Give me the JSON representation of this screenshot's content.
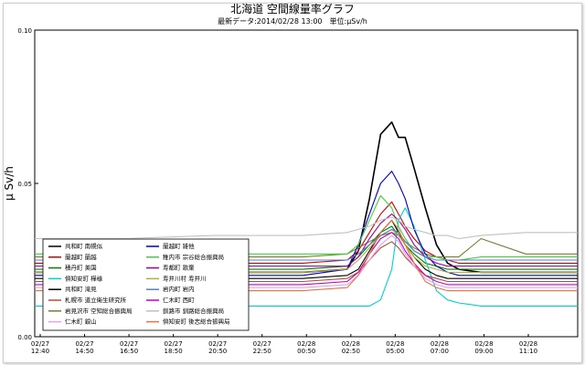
{
  "chart_data": {
    "type": "line",
    "title": "北海道 空間線量率グラフ",
    "subtitle": "最新データ:2014/02/28 13:00　単位:μSv/h",
    "ylabel": "μ Sv/h",
    "xlabel": "",
    "ylim": [
      0.0,
      0.1
    ],
    "y_ticks": [
      "0.00",
      "0.05",
      "0.10"
    ],
    "x_ticks": [
      {
        "date": "02/27",
        "time": "12:40"
      },
      {
        "date": "02/27",
        "time": "14:50"
      },
      {
        "date": "02/27",
        "time": "16:50"
      },
      {
        "date": "02/27",
        "time": "18:50"
      },
      {
        "date": "02/27",
        "time": "20:50"
      },
      {
        "date": "02/27",
        "time": "22:50"
      },
      {
        "date": "02/28",
        "time": "00:50"
      },
      {
        "date": "02/28",
        "time": "02:50"
      },
      {
        "date": "02/28",
        "time": "05:00"
      },
      {
        "date": "02/28",
        "time": "07:00"
      },
      {
        "date": "02/28",
        "time": "09:00"
      },
      {
        "date": "02/28",
        "time": "11:10"
      }
    ],
    "grid": false,
    "legend_position": "bottom-left",
    "x_hours": [
      0,
      4,
      8,
      12,
      14,
      14.5,
      15,
      15.5,
      16,
      16.3,
      16.6,
      17,
      17.5,
      18,
      18.5,
      19,
      20,
      22,
      24.33
    ],
    "series": [
      {
        "name": "共和町 南幌似",
        "color": "#000000",
        "values": [
          0.021,
          0.021,
          0.021,
          0.021,
          0.022,
          0.028,
          0.045,
          0.066,
          0.07,
          0.065,
          0.065,
          0.055,
          0.042,
          0.03,
          0.024,
          0.022,
          0.021,
          0.021,
          0.021
        ]
      },
      {
        "name": "蘭越町 蘭越",
        "color": "#d00000",
        "values": [
          0.024,
          0.024,
          0.024,
          0.024,
          0.025,
          0.028,
          0.034,
          0.04,
          0.044,
          0.04,
          0.036,
          0.032,
          0.028,
          0.026,
          0.025,
          0.024,
          0.024,
          0.024,
          0.024
        ]
      },
      {
        "name": "積丹町 美国",
        "color": "#008000",
        "values": [
          0.022,
          0.022,
          0.022,
          0.022,
          0.023,
          0.026,
          0.03,
          0.034,
          0.036,
          0.033,
          0.03,
          0.027,
          0.024,
          0.023,
          0.022,
          0.022,
          0.022,
          0.022,
          0.022
        ]
      },
      {
        "name": "倶知安町 樺様",
        "color": "#00d0d0",
        "values": [
          0.01,
          0.01,
          0.01,
          0.01,
          0.01,
          0.01,
          0.01,
          0.012,
          0.022,
          0.038,
          0.042,
          0.036,
          0.025,
          0.015,
          0.012,
          0.011,
          0.01,
          0.01,
          0.01
        ]
      },
      {
        "name": "共和町 滝見",
        "color": "#000000",
        "values": [
          0.019,
          0.019,
          0.019,
          0.019,
          0.02,
          0.022,
          0.028,
          0.034,
          0.038,
          0.034,
          0.03,
          0.026,
          0.022,
          0.02,
          0.019,
          0.019,
          0.019,
          0.019,
          0.019
        ]
      },
      {
        "name": "札幌市 道立衛生研究所",
        "color": "#b05030",
        "values": [
          0.018,
          0.018,
          0.018,
          0.018,
          0.019,
          0.021,
          0.025,
          0.029,
          0.031,
          0.029,
          0.026,
          0.023,
          0.02,
          0.019,
          0.018,
          0.018,
          0.018,
          0.018,
          0.018
        ]
      },
      {
        "name": "岩見沢市 空知総合振興局",
        "color": "#708030",
        "values": [
          0.026,
          0.026,
          0.026,
          0.026,
          0.027,
          0.029,
          0.031,
          0.033,
          0.034,
          0.033,
          0.031,
          0.029,
          0.027,
          0.026,
          0.026,
          0.026,
          0.032,
          0.027,
          0.027
        ]
      },
      {
        "name": "仁木町 銀山",
        "color": "#e8a0e8",
        "values": [
          0.016,
          0.016,
          0.016,
          0.016,
          0.017,
          0.02,
          0.025,
          0.03,
          0.033,
          0.031,
          0.027,
          0.023,
          0.019,
          0.017,
          0.016,
          0.016,
          0.016,
          0.016,
          0.016
        ]
      },
      {
        "name": "蘭越町 雑他",
        "color": "#0000c0",
        "values": [
          0.02,
          0.02,
          0.02,
          0.02,
          0.022,
          0.03,
          0.04,
          0.05,
          0.054,
          0.05,
          0.045,
          0.035,
          0.027,
          0.023,
          0.021,
          0.02,
          0.02,
          0.02,
          0.02
        ]
      },
      {
        "name": "稚内市 宗谷総合振興局",
        "color": "#40d040",
        "values": [
          0.027,
          0.027,
          0.027,
          0.027,
          0.027,
          0.03,
          0.038,
          0.046,
          0.042,
          0.036,
          0.032,
          0.028,
          0.026,
          0.026,
          0.025,
          0.025,
          0.026,
          0.026,
          0.026
        ]
      },
      {
        "name": "寿都町 歌棄",
        "color": "#a000a0",
        "values": [
          0.023,
          0.023,
          0.023,
          0.023,
          0.023,
          0.026,
          0.032,
          0.037,
          0.04,
          0.038,
          0.035,
          0.03,
          0.026,
          0.024,
          0.023,
          0.023,
          0.023,
          0.023,
          0.023
        ]
      },
      {
        "name": "寿井川村 寿井川",
        "color": "#b0b040",
        "values": [
          0.021,
          0.021,
          0.021,
          0.021,
          0.022,
          0.025,
          0.029,
          0.033,
          0.035,
          0.033,
          0.03,
          0.026,
          0.023,
          0.022,
          0.021,
          0.021,
          0.021,
          0.021,
          0.021
        ]
      },
      {
        "name": "岩内町 岩内",
        "color": "#5080d0",
        "values": [
          0.025,
          0.025,
          0.025,
          0.025,
          0.025,
          0.027,
          0.03,
          0.033,
          0.035,
          0.034,
          0.031,
          0.028,
          0.026,
          0.025,
          0.025,
          0.025,
          0.025,
          0.025,
          0.025
        ]
      },
      {
        "name": "仁木町 西町",
        "color": "#c000c0",
        "values": [
          0.017,
          0.017,
          0.017,
          0.017,
          0.018,
          0.021,
          0.027,
          0.032,
          0.034,
          0.032,
          0.028,
          0.024,
          0.02,
          0.018,
          0.017,
          0.017,
          0.017,
          0.017,
          0.017
        ]
      },
      {
        "name": "釧路市 釧路総合振興局",
        "color": "#c0c0c0",
        "values": [
          0.032,
          0.032,
          0.033,
          0.033,
          0.034,
          0.035,
          0.036,
          0.038,
          0.039,
          0.038,
          0.036,
          0.035,
          0.034,
          0.033,
          0.033,
          0.032,
          0.033,
          0.034,
          0.034
        ]
      },
      {
        "name": "倶知安町 後志総合振興局",
        "color": "#f07040",
        "values": [
          0.015,
          0.015,
          0.015,
          0.015,
          0.016,
          0.02,
          0.027,
          0.034,
          0.038,
          0.035,
          0.03,
          0.024,
          0.018,
          0.016,
          0.015,
          0.015,
          0.015,
          0.015,
          0.015
        ]
      }
    ]
  }
}
